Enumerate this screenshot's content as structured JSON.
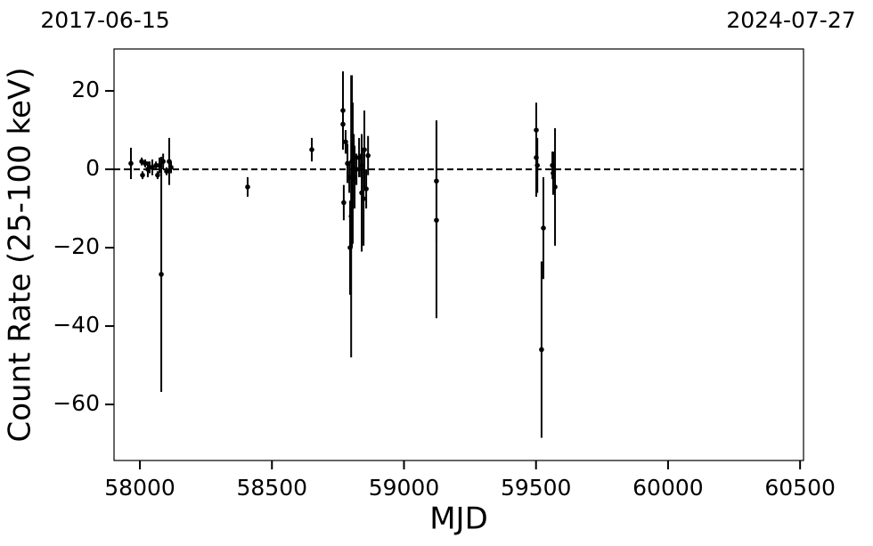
{
  "chart_data": {
    "type": "errorbar",
    "xlabel": "MJD",
    "ylabel": "Count Rate (25-100 keV)",
    "annotations": [
      "2017-06-15",
      "2024-07-27"
    ],
    "reference_line": 0,
    "color": "#000000",
    "xlim": [
      57902,
      60513
    ],
    "ylim": [
      -74.3,
      30.7
    ],
    "xticks": [
      58000,
      58500,
      59000,
      59500,
      60000,
      60500
    ],
    "yticks": [
      {
        "value": -60,
        "label": "−60"
      },
      {
        "value": -40,
        "label": "−40"
      },
      {
        "value": -20,
        "label": "−20"
      },
      0,
      20
    ],
    "series": [
      {
        "name": "data",
        "x": [
          57966,
          58007,
          58010,
          58020,
          58030,
          58037,
          58047,
          58061,
          58067,
          58074,
          58081,
          58088,
          58101,
          58111,
          58118,
          58408,
          58651,
          58769,
          58769,
          58772,
          58779,
          58786,
          58793,
          58796,
          58800,
          58803,
          58806,
          58810,
          58813,
          58820,
          58830,
          58837,
          58840,
          58847,
          58850,
          58857,
          58864,
          59123,
          59123,
          59501,
          59501,
          59505,
          59521,
          59528,
          59562,
          59565,
          59572
        ],
        "values": [
          1.5,
          2,
          -1.5,
          1.5,
          0,
          0.5,
          0.5,
          1,
          -1.5,
          1,
          -26.8,
          2,
          -0.5,
          2,
          0.5,
          -4.5,
          5,
          15,
          11.5,
          -8.5,
          7,
          1.5,
          -2,
          -20,
          -12,
          2,
          -1,
          3,
          -2,
          0,
          3,
          1,
          -6,
          -7.5,
          5,
          -5,
          3.5,
          -3,
          -13,
          10,
          3,
          1,
          -46,
          -15,
          1,
          -1,
          -4.5
        ],
        "errors": [
          4,
          1,
          1,
          1,
          2,
          1.5,
          2,
          1,
          1,
          2,
          30,
          2,
          1,
          6,
          1.5,
          2.5,
          3,
          10,
          6,
          4.5,
          3,
          5,
          4,
          12,
          36,
          22,
          18,
          6,
          8,
          4,
          5,
          3,
          15,
          12,
          10,
          5,
          5,
          15.5,
          25,
          7,
          10,
          7,
          22.5,
          13,
          3.5,
          5.5,
          15
        ]
      }
    ]
  }
}
